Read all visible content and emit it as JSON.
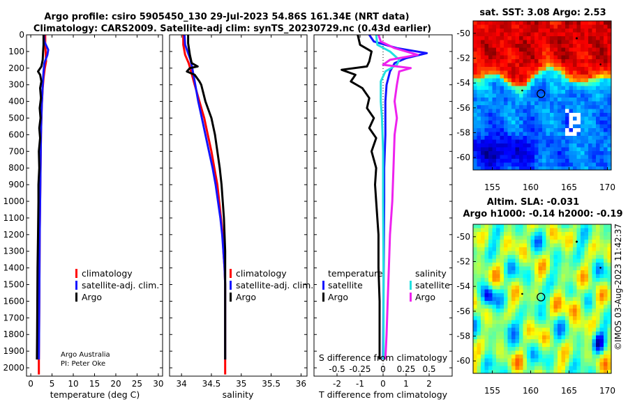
{
  "header": {
    "line1": "Argo profile: csiro 5905450_130 29-Jul-2023 54.86S 161.34E (NRT data)",
    "line2": "Climatology: CARS2009. Satellite-adj clim: synTS_20230729.nc (0.43d earlier)"
  },
  "credit": {
    "line1": "Argo Australia",
    "line2": "PI: Peter Oke",
    "imos": "©IMOS 03-Aug-2023 11:42:37"
  },
  "colors": {
    "climatology": "#ff0000",
    "satellite": "#1414ff",
    "argo": "#000000",
    "salinity_argo": "#ee22ee",
    "salinity_sat": "#22e0e0"
  },
  "chart_data": [
    {
      "type": "line",
      "id": "temperature",
      "xlabel": "temperature (deg C)",
      "xlim": [
        -1,
        31
      ],
      "xticks": [
        0,
        5,
        10,
        15,
        20,
        25,
        30
      ],
      "ylim": [
        2050,
        0
      ],
      "yticks": [
        0,
        100,
        200,
        300,
        400,
        500,
        600,
        700,
        800,
        900,
        1000,
        1100,
        1200,
        1300,
        1400,
        1500,
        1600,
        1700,
        1800,
        1900,
        2000
      ],
      "legend": [
        "climatology",
        "satellite-adj. clim.",
        "Argo"
      ],
      "series": [
        {
          "name": "climatology",
          "color": "#ff0000",
          "points": [
            [
              3.4,
              0
            ],
            [
              3.4,
              50
            ],
            [
              3.5,
              100
            ],
            [
              3.6,
              160
            ],
            [
              3.3,
              200
            ],
            [
              3.0,
              260
            ],
            [
              2.8,
              320
            ],
            [
              2.6,
              420
            ],
            [
              2.5,
              500
            ],
            [
              2.4,
              600
            ],
            [
              2.3,
              800
            ],
            [
              2.2,
              1000
            ],
            [
              2.1,
              1200
            ],
            [
              2.05,
              1400
            ],
            [
              2.0,
              1600
            ],
            [
              1.95,
              1800
            ],
            [
              1.9,
              1950
            ],
            [
              1.9,
              2040
            ]
          ]
        },
        {
          "name": "satellite-adj. clim.",
          "color": "#1414ff",
          "points": [
            [
              3.1,
              0
            ],
            [
              3.2,
              40
            ],
            [
              4.1,
              90
            ],
            [
              3.9,
              120
            ],
            [
              3.2,
              170
            ],
            [
              3.0,
              220
            ],
            [
              2.8,
              300
            ],
            [
              2.6,
              420
            ],
            [
              2.5,
              500
            ],
            [
              2.4,
              600
            ],
            [
              2.3,
              800
            ],
            [
              2.2,
              1000
            ],
            [
              2.1,
              1200
            ],
            [
              2.05,
              1400
            ],
            [
              2.0,
              1600
            ],
            [
              1.95,
              1800
            ],
            [
              1.9,
              1950
            ]
          ]
        },
        {
          "name": "Argo",
          "color": "#000000",
          "points": [
            [
              3.0,
              0
            ],
            [
              3.0,
              60
            ],
            [
              2.9,
              100
            ],
            [
              2.8,
              150
            ],
            [
              2.5,
              190
            ],
            [
              1.7,
              220
            ],
            [
              2.2,
              240
            ],
            [
              2.5,
              280
            ],
            [
              2.2,
              320
            ],
            [
              2.4,
              380
            ],
            [
              2.1,
              440
            ],
            [
              2.3,
              500
            ],
            [
              2.0,
              560
            ],
            [
              2.2,
              620
            ],
            [
              1.9,
              700
            ],
            [
              2.0,
              800
            ],
            [
              1.8,
              900
            ],
            [
              1.8,
              1000
            ],
            [
              1.7,
              1200
            ],
            [
              1.6,
              1400
            ],
            [
              1.55,
              1600
            ],
            [
              1.5,
              1800
            ],
            [
              1.45,
              1950
            ]
          ]
        }
      ]
    },
    {
      "type": "line",
      "id": "salinity",
      "xlabel": "salinity",
      "xlim": [
        33.8,
        36.1
      ],
      "xticks": [
        34,
        34.5,
        35,
        35.5,
        36
      ],
      "xticklabels": [
        "34",
        "34.5",
        "35",
        "35.5",
        "36"
      ],
      "ylim": [
        2050,
        0
      ],
      "legend": [
        "climatology",
        "satellite-adj. clim.",
        "Argo"
      ],
      "series": [
        {
          "name": "climatology",
          "color": "#ff0000",
          "points": [
            [
              34.03,
              0
            ],
            [
              34.03,
              60
            ],
            [
              34.06,
              120
            ],
            [
              34.12,
              170
            ],
            [
              34.16,
              220
            ],
            [
              34.22,
              300
            ],
            [
              34.3,
              400
            ],
            [
              34.38,
              500
            ],
            [
              34.44,
              600
            ],
            [
              34.5,
              700
            ],
            [
              34.55,
              800
            ],
            [
              34.6,
              900
            ],
            [
              34.63,
              1000
            ],
            [
              34.66,
              1100
            ],
            [
              34.69,
              1200
            ],
            [
              34.7,
              1300
            ],
            [
              34.72,
              1400
            ],
            [
              34.73,
              1500
            ],
            [
              34.73,
              1700
            ],
            [
              34.73,
              1900
            ],
            [
              34.73,
              2040
            ]
          ]
        },
        {
          "name": "satellite-adj. clim.",
          "color": "#1414ff",
          "points": [
            [
              34.05,
              0
            ],
            [
              34.06,
              60
            ],
            [
              34.1,
              100
            ],
            [
              34.15,
              150
            ],
            [
              34.18,
              200
            ],
            [
              34.22,
              280
            ],
            [
              34.28,
              400
            ],
            [
              34.34,
              500
            ],
            [
              34.4,
              600
            ],
            [
              34.46,
              700
            ],
            [
              34.52,
              800
            ],
            [
              34.57,
              900
            ],
            [
              34.61,
              1000
            ],
            [
              34.65,
              1100
            ],
            [
              34.68,
              1200
            ],
            [
              34.7,
              1300
            ],
            [
              34.72,
              1400
            ],
            [
              34.73,
              1500
            ],
            [
              34.73,
              1700
            ],
            [
              34.73,
              1950
            ]
          ]
        },
        {
          "name": "Argo",
          "color": "#000000",
          "points": [
            [
              34.11,
              0
            ],
            [
              34.11,
              50
            ],
            [
              34.14,
              120
            ],
            [
              34.17,
              170
            ],
            [
              34.27,
              190
            ],
            [
              34.14,
              200
            ],
            [
              34.09,
              220
            ],
            [
              34.22,
              240
            ],
            [
              34.3,
              280
            ],
            [
              34.33,
              300
            ],
            [
              34.4,
              400
            ],
            [
              34.5,
              500
            ],
            [
              34.56,
              600
            ],
            [
              34.6,
              700
            ],
            [
              34.64,
              800
            ],
            [
              34.67,
              900
            ],
            [
              34.69,
              1000
            ],
            [
              34.71,
              1100
            ],
            [
              34.72,
              1200
            ],
            [
              34.73,
              1300
            ],
            [
              34.73,
              1500
            ],
            [
              34.73,
              1800
            ],
            [
              34.73,
              1950
            ]
          ]
        }
      ]
    },
    {
      "type": "line",
      "id": "difference",
      "xlabel": "T difference from climatology",
      "xlabel_top": "S difference from climatology",
      "xlim": [
        -3,
        3
      ],
      "xticks": [
        -2,
        -1,
        0,
        1,
        2
      ],
      "xticklabels": [
        "-2",
        "-1",
        "0",
        "1",
        "2"
      ],
      "s_ticklabels": [
        "-0.5",
        "-0.25",
        "0",
        "0.25",
        "0.5"
      ],
      "s_tick_positions": [
        -2,
        -1,
        0,
        1,
        2
      ],
      "ylim": [
        2050,
        0
      ],
      "legend_temperature_title": "temperature",
      "legend_salinity_title": "salinity",
      "legend_temperature": [
        "satellite",
        "Argo"
      ],
      "legend_salinity": [
        "satellite",
        "Argo"
      ],
      "series": [
        {
          "name": "temperature satellite",
          "color": "#1414ff",
          "points": [
            [
              -0.6,
              0
            ],
            [
              -0.4,
              40
            ],
            [
              0.6,
              80
            ],
            [
              1.9,
              110
            ],
            [
              1.0,
              140
            ],
            [
              0.5,
              170
            ],
            [
              0.3,
              220
            ],
            [
              0.15,
              300
            ],
            [
              0.1,
              400
            ],
            [
              0.1,
              600
            ],
            [
              0.05,
              800
            ],
            [
              0.05,
              1000
            ],
            [
              0.02,
              1500
            ],
            [
              0.0,
              1950
            ]
          ]
        },
        {
          "name": "temperature Argo",
          "color": "#000000",
          "points": [
            [
              -1.1,
              0
            ],
            [
              -1.0,
              60
            ],
            [
              -0.5,
              100
            ],
            [
              -0.6,
              160
            ],
            [
              -0.7,
              190
            ],
            [
              -1.8,
              210
            ],
            [
              -1.2,
              240
            ],
            [
              -1.4,
              280
            ],
            [
              -0.9,
              320
            ],
            [
              -0.6,
              380
            ],
            [
              -0.7,
              440
            ],
            [
              -0.4,
              500
            ],
            [
              -0.6,
              560
            ],
            [
              -0.3,
              620
            ],
            [
              -0.5,
              700
            ],
            [
              -0.3,
              800
            ],
            [
              -0.35,
              900
            ],
            [
              -0.3,
              1000
            ],
            [
              -0.2,
              1200
            ],
            [
              -0.2,
              1400
            ],
            [
              -0.15,
              1600
            ],
            [
              -0.15,
              1800
            ],
            [
              -0.15,
              1950
            ]
          ]
        },
        {
          "name": "salinity satellite",
          "color": "#22e0e0",
          "points": [
            [
              -0.3,
              0
            ],
            [
              -0.25,
              60
            ],
            [
              0.3,
              100
            ],
            [
              0.7,
              150
            ],
            [
              0.6,
              180
            ],
            [
              0.1,
              220
            ],
            [
              -0.1,
              280
            ],
            [
              -0.1,
              400
            ],
            [
              -0.05,
              500
            ],
            [
              0.0,
              700
            ],
            [
              0.0,
              1000
            ],
            [
              0.02,
              1500
            ],
            [
              0.02,
              1950
            ]
          ]
        },
        {
          "name": "salinity Argo",
          "color": "#ee22ee",
          "points": [
            [
              -0.2,
              0
            ],
            [
              -0.1,
              40
            ],
            [
              0.5,
              80
            ],
            [
              1.5,
              120
            ],
            [
              0.3,
              150
            ],
            [
              0.0,
              180
            ],
            [
              1.2,
              200
            ],
            [
              0.7,
              220
            ],
            [
              0.6,
              300
            ],
            [
              0.5,
              400
            ],
            [
              0.6,
              500
            ],
            [
              0.5,
              600
            ],
            [
              0.45,
              800
            ],
            [
              0.4,
              1000
            ],
            [
              0.3,
              1200
            ],
            [
              0.25,
              1400
            ],
            [
              0.2,
              1600
            ],
            [
              0.15,
              1800
            ],
            [
              0.1,
              1950
            ]
          ]
        }
      ]
    },
    {
      "type": "heatmap",
      "id": "sst_map",
      "title": "sat. SST: 3.08 Argo: 2.53",
      "xlim": [
        152.5,
        170.5
      ],
      "ylim": [
        -61,
        -49
      ],
      "xticks": [
        155,
        160,
        165,
        170
      ],
      "xticklabels": [
        "155",
        "160",
        "165",
        "170"
      ],
      "yticks": [
        -50,
        -52,
        -54,
        -56,
        -58,
        -60
      ],
      "yticklabels": [
        "-50",
        "-52",
        "-54",
        "-56",
        "-58",
        "-60"
      ],
      "argo_position": [
        161.34,
        -54.86
      ]
    },
    {
      "type": "heatmap",
      "id": "sla_map",
      "title_line1": "Altim. SLA: -0.031",
      "title_line2": "Argo h1000: -0.14 h2000: -0.19",
      "xlim": [
        152.5,
        170.5
      ],
      "ylim": [
        -61,
        -49
      ],
      "xticks": [
        155,
        160,
        165,
        170
      ],
      "xticklabels": [
        "155",
        "160",
        "165",
        "170"
      ],
      "yticks": [
        -50,
        -52,
        -54,
        -56,
        -58,
        -60
      ],
      "yticklabels": [
        "-50",
        "-52",
        "-54",
        "-56",
        "-58",
        "-60"
      ],
      "argo_position": [
        161.34,
        -54.86
      ]
    }
  ]
}
